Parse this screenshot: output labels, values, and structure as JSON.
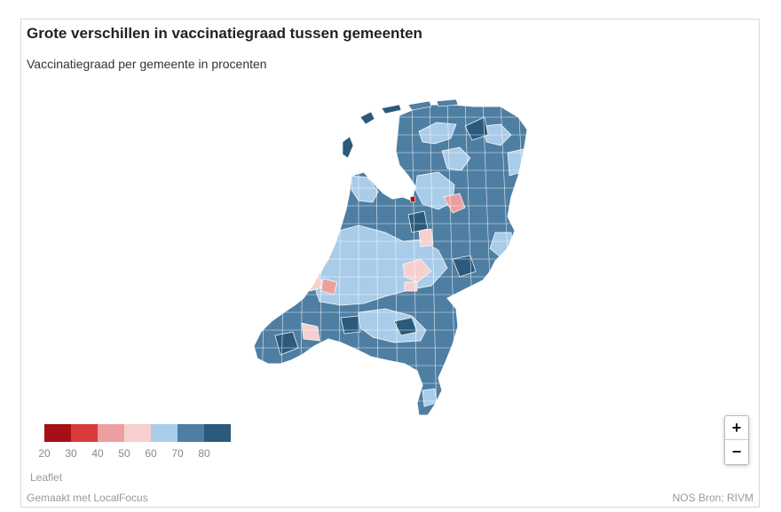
{
  "header": {
    "title": "Grote verschillen in vaccinatiegraad tussen gemeenten",
    "subtitle": "Vaccinatiegraad per gemeente in procenten"
  },
  "legend": {
    "labels": [
      "20",
      "30",
      "40",
      "50",
      "60",
      "70",
      "80"
    ],
    "colors": [
      "#a50f15",
      "#d93a3a",
      "#ec9f9f",
      "#f6cfcf",
      "#a9cce9",
      "#4f7ea3",
      "#2c5a7c"
    ]
  },
  "zoom": {
    "in_label": "+",
    "out_label": "−"
  },
  "footer": {
    "attribution": "Leaflet",
    "made_with": "Gemaakt met LocalFocus",
    "source": "NOS   Bron: RIVM"
  }
}
